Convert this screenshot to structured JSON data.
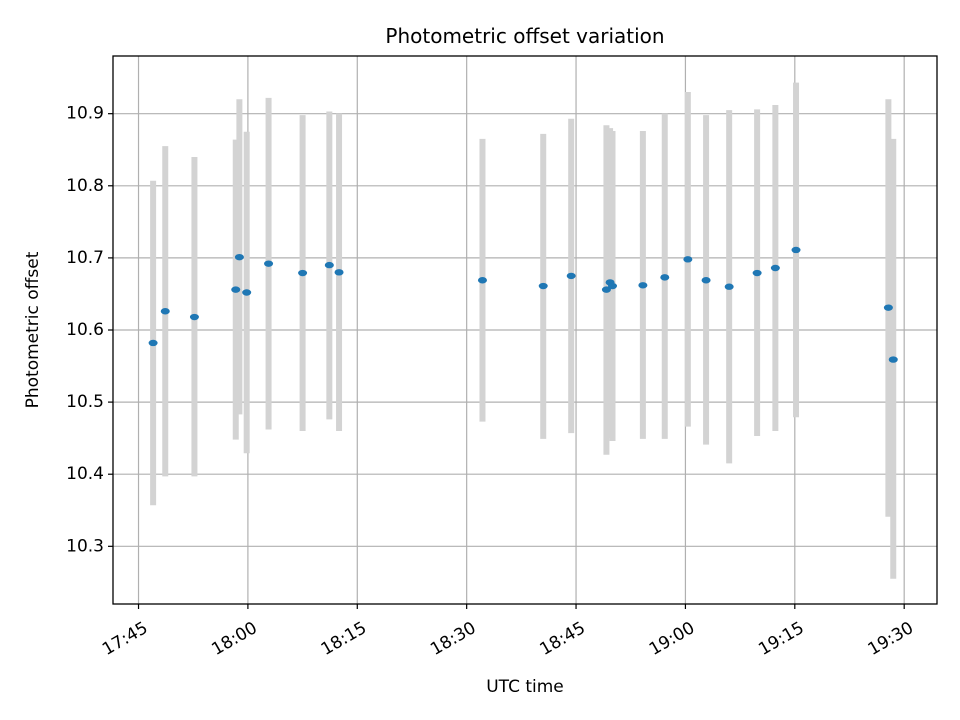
{
  "chart_data": {
    "type": "scatter",
    "title": "Photometric offset variation",
    "xlabel": "UTC time",
    "ylabel": "Photometric offset",
    "x_ticks": [
      "17:45",
      "18:00",
      "18:15",
      "18:30",
      "18:45",
      "19:00",
      "19:15",
      "19:30"
    ],
    "y_ticks": [
      "10.3",
      "10.4",
      "10.5",
      "10.6",
      "10.7",
      "10.8",
      "10.9"
    ],
    "xlim": [
      "17:41:30",
      "19:34:30"
    ],
    "ylim": [
      10.22,
      10.98
    ],
    "grid": true,
    "colors": {
      "points": "#1f77b4",
      "error_bars": "#d3d3d3",
      "grid": "#b0b0b0"
    },
    "points": [
      {
        "x": "17:47:00",
        "y": 10.582,
        "y_low": 10.357,
        "y_high": 10.807
      },
      {
        "x": "17:48:40",
        "y": 10.626,
        "y_low": 10.397,
        "y_high": 10.855
      },
      {
        "x": "17:52:40",
        "y": 10.618,
        "y_low": 10.397,
        "y_high": 10.84
      },
      {
        "x": "17:58:20",
        "y": 10.656,
        "y_low": 10.448,
        "y_high": 10.864
      },
      {
        "x": "17:58:50",
        "y": 10.701,
        "y_low": 10.483,
        "y_high": 10.92
      },
      {
        "x": "17:59:50",
        "y": 10.652,
        "y_low": 10.429,
        "y_high": 10.875
      },
      {
        "x": "18:02:50",
        "y": 10.692,
        "y_low": 10.462,
        "y_high": 10.922
      },
      {
        "x": "18:07:30",
        "y": 10.679,
        "y_low": 10.46,
        "y_high": 10.898
      },
      {
        "x": "18:11:10",
        "y": 10.69,
        "y_low": 10.476,
        "y_high": 10.903
      },
      {
        "x": "18:12:30",
        "y": 10.68,
        "y_low": 10.46,
        "y_high": 10.9
      },
      {
        "x": "18:32:10",
        "y": 10.669,
        "y_low": 10.473,
        "y_high": 10.865
      },
      {
        "x": "18:40:30",
        "y": 10.661,
        "y_low": 10.449,
        "y_high": 10.872
      },
      {
        "x": "18:44:20",
        "y": 10.675,
        "y_low": 10.457,
        "y_high": 10.893
      },
      {
        "x": "18:49:10",
        "y": 10.656,
        "y_low": 10.427,
        "y_high": 10.884
      },
      {
        "x": "18:49:40",
        "y": 10.666,
        "y_low": 10.45,
        "y_high": 10.88
      },
      {
        "x": "18:50:00",
        "y": 10.661,
        "y_low": 10.446,
        "y_high": 10.876
      },
      {
        "x": "18:54:10",
        "y": 10.662,
        "y_low": 10.449,
        "y_high": 10.876
      },
      {
        "x": "18:57:10",
        "y": 10.673,
        "y_low": 10.449,
        "y_high": 10.9
      },
      {
        "x": "19:00:20",
        "y": 10.698,
        "y_low": 10.466,
        "y_high": 10.93
      },
      {
        "x": "19:02:50",
        "y": 10.669,
        "y_low": 10.441,
        "y_high": 10.898
      },
      {
        "x": "19:06:00",
        "y": 10.66,
        "y_low": 10.415,
        "y_high": 10.905
      },
      {
        "x": "19:09:50",
        "y": 10.679,
        "y_low": 10.453,
        "y_high": 10.906
      },
      {
        "x": "19:12:20",
        "y": 10.686,
        "y_low": 10.46,
        "y_high": 10.912
      },
      {
        "x": "19:15:10",
        "y": 10.711,
        "y_low": 10.479,
        "y_high": 10.943
      },
      {
        "x": "19:27:50",
        "y": 10.631,
        "y_low": 10.341,
        "y_high": 10.92
      },
      {
        "x": "19:28:30",
        "y": 10.559,
        "y_low": 10.255,
        "y_high": 10.865
      }
    ]
  }
}
